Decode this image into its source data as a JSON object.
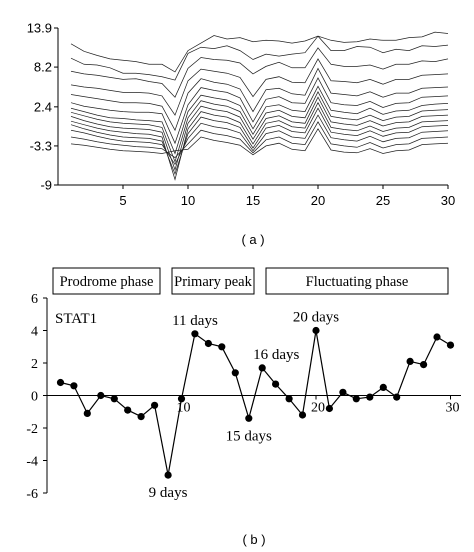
{
  "chart_data": [
    {
      "type": "line",
      "panel_label": "( a )",
      "x_ticks": [
        5,
        10,
        15,
        20,
        25,
        30
      ],
      "y_ticks": [
        "13.9",
        "8.2",
        "2.4",
        "-3.3",
        "-9"
      ],
      "xlim": [
        0,
        30
      ],
      "ylim": [
        -9,
        13.9
      ],
      "x": [
        1,
        2,
        3,
        4,
        5,
        6,
        7,
        8,
        9,
        10,
        11,
        12,
        13,
        14,
        15,
        16,
        17,
        18,
        19,
        20,
        21,
        22,
        23,
        24,
        25,
        26,
        27,
        28,
        29,
        30
      ],
      "series": [
        {
          "values": [
            11.6,
            10.5,
            9.9,
            9.4,
            9.2,
            9.0,
            8.6,
            8.6,
            7.5,
            10.6,
            11.7,
            12.8,
            12.3,
            12.5,
            11.9,
            12.1,
            12.0,
            11.7,
            12.0,
            12.7,
            12.1,
            11.8,
            11.9,
            12.3,
            12.1,
            12.1,
            12.5,
            12.6,
            13.3,
            13.1
          ]
        },
        {
          "values": [
            9.5,
            8.6,
            8.5,
            8.1,
            7.3,
            7.3,
            7.1,
            6.8,
            6.3,
            10.2,
            11.1,
            10.9,
            11.3,
            10.6,
            9.3,
            10.1,
            9.8,
            10.1,
            10.3,
            12.7,
            10.6,
            10.6,
            11.2,
            11.1,
            10.3,
            10.8,
            10.6,
            11.3,
            11.2,
            11.4
          ]
        },
        {
          "values": [
            7.6,
            7.2,
            7.0,
            6.7,
            6.4,
            6.5,
            6.1,
            5.8,
            3.8,
            8.0,
            9.6,
            9.3,
            9.2,
            8.8,
            7.2,
            8.3,
            8.9,
            8.1,
            8.1,
            11.0,
            8.6,
            8.3,
            8.3,
            8.5,
            7.9,
            8.6,
            8.6,
            9.1,
            9.0,
            9.4
          ]
        },
        {
          "values": [
            5.6,
            5.3,
            5.1,
            4.8,
            4.5,
            4.5,
            4.4,
            4.0,
            1.2,
            6.2,
            7.9,
            7.6,
            7.3,
            6.7,
            3.9,
            6.4,
            6.8,
            6.0,
            5.9,
            9.4,
            6.2,
            6.1,
            5.9,
            6.4,
            5.7,
            6.4,
            6.4,
            7.0,
            7.1,
            7.2
          ]
        },
        {
          "values": [
            4.2,
            3.9,
            3.6,
            3.3,
            3.0,
            3.0,
            2.9,
            2.5,
            -1.0,
            4.4,
            6.5,
            6.0,
            5.7,
            5.0,
            1.7,
            4.9,
            5.1,
            4.3,
            4.1,
            8.0,
            4.4,
            4.2,
            4.0,
            4.6,
            3.8,
            4.4,
            4.4,
            5.1,
            5.2,
            5.3
          ]
        },
        {
          "values": [
            3.0,
            2.5,
            2.2,
            1.9,
            1.7,
            1.6,
            1.6,
            1.4,
            -2.9,
            2.7,
            5.2,
            4.8,
            4.5,
            3.7,
            0.2,
            3.5,
            3.9,
            3.0,
            2.9,
            6.6,
            3.0,
            2.7,
            2.6,
            3.2,
            2.3,
            2.9,
            3.0,
            3.8,
            3.9,
            4.0
          ]
        },
        {
          "values": [
            2.2,
            1.7,
            1.2,
            0.8,
            0.7,
            0.5,
            0.4,
            0.2,
            -4.4,
            1.7,
            4.1,
            3.7,
            3.4,
            2.6,
            -0.8,
            2.4,
            2.7,
            1.9,
            1.7,
            5.4,
            1.9,
            1.6,
            1.4,
            2.2,
            1.3,
            1.8,
            1.9,
            2.6,
            2.8,
            2.9
          ]
        },
        {
          "values": [
            1.6,
            1.1,
            0.6,
            0.2,
            0.0,
            -0.1,
            -0.2,
            -0.6,
            -5.6,
            0.8,
            3.3,
            2.8,
            2.5,
            1.7,
            -1.6,
            1.5,
            1.9,
            1.0,
            0.8,
            4.6,
            1.0,
            0.7,
            0.5,
            1.2,
            0.4,
            0.9,
            1.0,
            1.8,
            1.9,
            2.0
          ]
        },
        {
          "values": [
            1.0,
            0.4,
            -0.1,
            -0.5,
            -0.7,
            -0.8,
            -0.9,
            -1.3,
            -6.8,
            0.0,
            2.5,
            2.0,
            1.7,
            0.9,
            -2.3,
            0.7,
            1.1,
            0.2,
            0.0,
            3.8,
            0.2,
            -0.1,
            -0.3,
            0.4,
            -0.4,
            0.1,
            0.2,
            1.0,
            1.1,
            1.2
          ]
        },
        {
          "values": [
            0.3,
            -0.2,
            -0.7,
            -1.1,
            -1.3,
            -1.5,
            -1.6,
            -2.0,
            -8.2,
            -0.8,
            1.7,
            1.2,
            0.9,
            0.1,
            -3.0,
            0.0,
            0.4,
            -0.5,
            -0.7,
            3.0,
            -0.6,
            -0.9,
            -1.1,
            -0.4,
            -1.2,
            -0.7,
            -0.6,
            0.2,
            0.3,
            0.4
          ]
        },
        {
          "values": [
            -0.2,
            -0.8,
            -1.3,
            -1.7,
            -2.0,
            -2.1,
            -2.2,
            -2.6,
            -7.4,
            -1.5,
            0.9,
            0.4,
            0.1,
            -0.6,
            -3.6,
            -0.7,
            -0.3,
            -1.2,
            -1.4,
            2.2,
            -1.3,
            -1.6,
            -1.8,
            -1.1,
            -1.9,
            -1.4,
            -1.3,
            -0.5,
            -0.4,
            -0.3
          ]
        },
        {
          "values": [
            -1.0,
            -1.4,
            -1.9,
            -2.3,
            -2.6,
            -2.7,
            -2.8,
            -3.1,
            -6.0,
            -2.2,
            0.0,
            -0.5,
            -0.8,
            -1.4,
            -4.0,
            -1.5,
            -1.1,
            -2.0,
            -2.2,
            1.2,
            -2.1,
            -2.4,
            -2.6,
            -1.9,
            -2.7,
            -2.2,
            -2.1,
            -1.3,
            -1.2,
            -1.1
          ]
        },
        {
          "values": [
            -2.0,
            -2.3,
            -2.7,
            -3.0,
            -3.2,
            -3.4,
            -3.5,
            -3.7,
            -5.0,
            -3.0,
            -1.0,
            -1.5,
            -1.8,
            -2.3,
            -4.3,
            -2.4,
            -2.0,
            -2.9,
            -3.1,
            0.2,
            -3.0,
            -3.3,
            -3.5,
            -2.8,
            -3.6,
            -3.1,
            -3.0,
            -2.2,
            -2.1,
            -2.0
          ]
        },
        {
          "values": [
            -3.0,
            -3.2,
            -3.5,
            -3.8,
            -4.0,
            -4.1,
            -4.2,
            -4.4,
            -4.0,
            -3.8,
            -2.0,
            -2.5,
            -2.8,
            -3.2,
            -4.6,
            -3.3,
            -2.9,
            -3.8,
            -4.0,
            -0.8,
            -3.9,
            -4.2,
            -4.3,
            -3.7,
            -4.4,
            -4.0,
            -3.9,
            -3.1,
            -3.0,
            -2.9
          ]
        }
      ]
    },
    {
      "type": "line",
      "panel_label": "( b )",
      "series_name": "STAT1",
      "phases": [
        "Prodrome phase",
        "Primary peak",
        "Fluctuating phase"
      ],
      "x_ticks": [
        10,
        20,
        30
      ],
      "y_ticks": [
        "6",
        "4",
        "2",
        "0",
        "-2",
        "-4",
        "-6"
      ],
      "xlim": [
        0,
        31
      ],
      "ylim": [
        -6,
        6
      ],
      "x": [
        1,
        2,
        3,
        4,
        5,
        6,
        7,
        8,
        9,
        10,
        11,
        12,
        13,
        14,
        15,
        16,
        17,
        18,
        19,
        20,
        21,
        22,
        23,
        24,
        25,
        26,
        27,
        28,
        29,
        30
      ],
      "values": [
        0.8,
        0.6,
        -1.1,
        0.0,
        -0.2,
        -0.9,
        -1.3,
        -0.6,
        -4.9,
        -0.2,
        3.8,
        3.2,
        3.0,
        1.4,
        -1.4,
        1.7,
        0.7,
        -0.2,
        -1.2,
        4.0,
        -0.8,
        0.2,
        -0.2,
        -0.1,
        0.5,
        -0.1,
        2.1,
        1.9,
        3.6,
        3.1
      ],
      "annotations": [
        {
          "x": 9,
          "text": "9 days"
        },
        {
          "x": 11,
          "text": "11 days"
        },
        {
          "x": 15,
          "text": "15 days"
        },
        {
          "x": 16,
          "text": "16 days"
        },
        {
          "x": 20,
          "text": "20 days"
        }
      ]
    }
  ]
}
